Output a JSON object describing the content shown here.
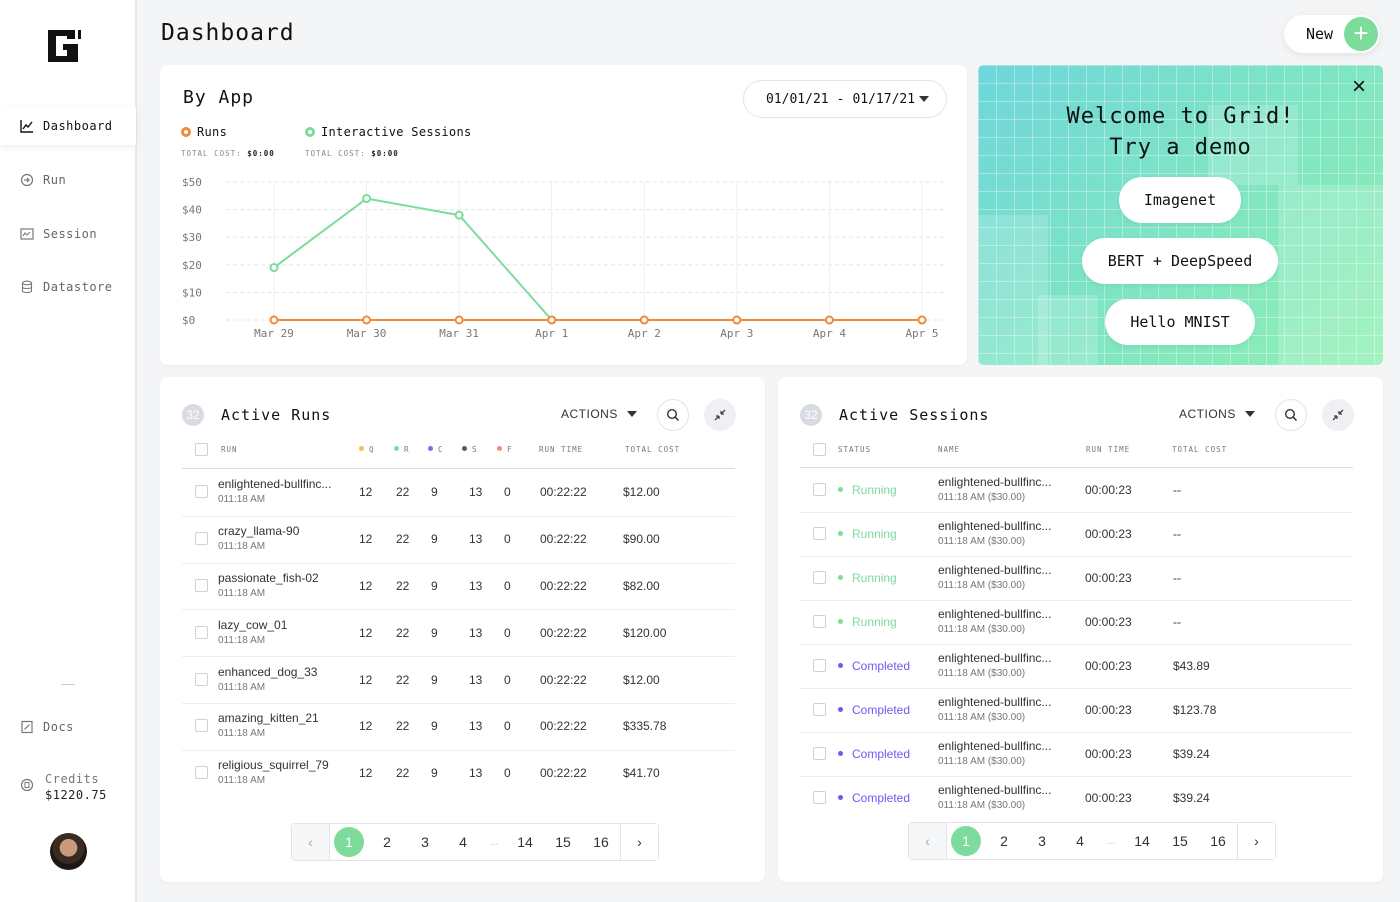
{
  "app": {
    "title": "Dashboard",
    "new_label": "New",
    "new_plus": "+"
  },
  "sidebar": {
    "items": [
      {
        "label": "Dashboard",
        "icon": "chart-line-icon"
      },
      {
        "label": "Run",
        "icon": "run-icon"
      },
      {
        "label": "Session",
        "icon": "session-icon"
      },
      {
        "label": "Datastore",
        "icon": "database-icon"
      },
      {
        "label": "Docs",
        "icon": "docs-icon"
      }
    ],
    "credits_label": "Credits",
    "credits_value": "$1220.75"
  },
  "byapp": {
    "title": "By App",
    "date_from": "01/01/21",
    "date_sep": "-",
    "date_to": "01/17/21",
    "legend": [
      {
        "name": "Runs",
        "cost_label": "TOTAL COST:",
        "cost_value": "$0:00",
        "color": "#f08a3c"
      },
      {
        "name": "Interactive Sessions",
        "cost_label": "TOTAL COST:",
        "cost_value": "$0:00",
        "color": "#7ddb9b"
      }
    ]
  },
  "chart_data": {
    "type": "line",
    "categories": [
      "Mar 29",
      "Mar 30",
      "Mar 31",
      "Apr 1",
      "Apr 2",
      "Apr 3",
      "Apr 4",
      "Apr 5"
    ],
    "y_ticks": [
      "$50",
      "$40",
      "$30",
      "$20",
      "$10",
      "$0"
    ],
    "ylim": [
      0,
      50
    ],
    "grid": true,
    "series": [
      {
        "name": "Runs",
        "color": "#f08a3c",
        "values": [
          0,
          0,
          0,
          0,
          0,
          0,
          0,
          0
        ]
      },
      {
        "name": "Interactive Sessions",
        "color": "#7ddb9b",
        "values": [
          19,
          44,
          38,
          0,
          0,
          0,
          0,
          0
        ]
      }
    ]
  },
  "welcome": {
    "line1": "Welcome to Grid!",
    "line2": "Try a demo",
    "demos": [
      "Imagenet",
      "BERT + DeepSpeed",
      "Hello MNIST"
    ]
  },
  "runs": {
    "count": "32",
    "title": "Active Runs",
    "actions": "ACTIONS",
    "headers": {
      "run": "RUN",
      "q": "Q",
      "r": "R",
      "c": "C",
      "s": "S",
      "f": "F",
      "run_time": "RUN TIME",
      "total_cost": "TOTAL COST"
    },
    "status_colors": {
      "q": "#f5c04a",
      "r": "#7ddb9b",
      "c": "#7b6ef0",
      "s": "#555b66",
      "f": "#f28b82"
    },
    "rows": [
      {
        "name": "enlightened-bullfinc...",
        "time": "011:18 AM",
        "q": "12",
        "r": "22",
        "c": "9",
        "s": "13",
        "f": "0",
        "run_time": "00:22:22",
        "cost": "$12.00"
      },
      {
        "name": "crazy_llama-90",
        "time": "011:18 AM",
        "q": "12",
        "r": "22",
        "c": "9",
        "s": "13",
        "f": "0",
        "run_time": "00:22:22",
        "cost": "$90.00"
      },
      {
        "name": "passionate_fish-02",
        "time": "011:18 AM",
        "q": "12",
        "r": "22",
        "c": "9",
        "s": "13",
        "f": "0",
        "run_time": "00:22:22",
        "cost": "$82.00"
      },
      {
        "name": "lazy_cow_01",
        "time": "011:18 AM",
        "q": "12",
        "r": "22",
        "c": "9",
        "s": "13",
        "f": "0",
        "run_time": "00:22:22",
        "cost": "$120.00"
      },
      {
        "name": "enhanced_dog_33",
        "time": "011:18 AM",
        "q": "12",
        "r": "22",
        "c": "9",
        "s": "13",
        "f": "0",
        "run_time": "00:22:22",
        "cost": "$12.00"
      },
      {
        "name": "amazing_kitten_21",
        "time": "011:18 AM",
        "q": "12",
        "r": "22",
        "c": "9",
        "s": "13",
        "f": "0",
        "run_time": "00:22:22",
        "cost": "$335.78"
      },
      {
        "name": "religious_squirrel_79",
        "time": "011:18 AM",
        "q": "12",
        "r": "22",
        "c": "9",
        "s": "13",
        "f": "0",
        "run_time": "00:22:22",
        "cost": "$41.70"
      }
    ],
    "pages": [
      "1",
      "2",
      "3",
      "4",
      "...",
      "14",
      "15",
      "16"
    ]
  },
  "sessions": {
    "count": "32",
    "title": "Active Sessions",
    "actions": "ACTIONS",
    "headers": {
      "status": "STATUS",
      "name": "NAME",
      "run_time": "RUN TIME",
      "total_cost": "TOTAL COST"
    },
    "rows": [
      {
        "status": "Running",
        "status_color": "#7ddb9b",
        "name": "enlightened-bullfinc...",
        "sub": "011:18 AM ($30.00)",
        "run_time": "00:00:23",
        "cost": "--"
      },
      {
        "status": "Running",
        "status_color": "#7ddb9b",
        "name": "enlightened-bullfinc...",
        "sub": "011:18 AM ($30.00)",
        "run_time": "00:00:23",
        "cost": "--"
      },
      {
        "status": "Running",
        "status_color": "#7ddb9b",
        "name": "enlightened-bullfinc...",
        "sub": "011:18 AM ($30.00)",
        "run_time": "00:00:23",
        "cost": "--"
      },
      {
        "status": "Running",
        "status_color": "#7ddb9b",
        "name": "enlightened-bullfinc...",
        "sub": "011:18 AM ($30.00)",
        "run_time": "00:00:23",
        "cost": "--"
      },
      {
        "status": "Completed",
        "status_color": "#6a5cf0",
        "name": "enlightened-bullfinc...",
        "sub": "011:18 AM ($30.00)",
        "run_time": "00:00:23",
        "cost": "$43.89"
      },
      {
        "status": "Completed",
        "status_color": "#6a5cf0",
        "name": "enlightened-bullfinc...",
        "sub": "011:18 AM ($30.00)",
        "run_time": "00:00:23",
        "cost": "$123.78"
      },
      {
        "status": "Completed",
        "status_color": "#6a5cf0",
        "name": "enlightened-bullfinc...",
        "sub": "011:18 AM ($30.00)",
        "run_time": "00:00:23",
        "cost": "$39.24"
      },
      {
        "status": "Completed",
        "status_color": "#6a5cf0",
        "name": "enlightened-bullfinc...",
        "sub": "011:18 AM ($30.00)",
        "run_time": "00:00:23",
        "cost": "$39.24"
      }
    ],
    "pages": [
      "1",
      "2",
      "3",
      "4",
      "...",
      "14",
      "15",
      "16"
    ]
  }
}
